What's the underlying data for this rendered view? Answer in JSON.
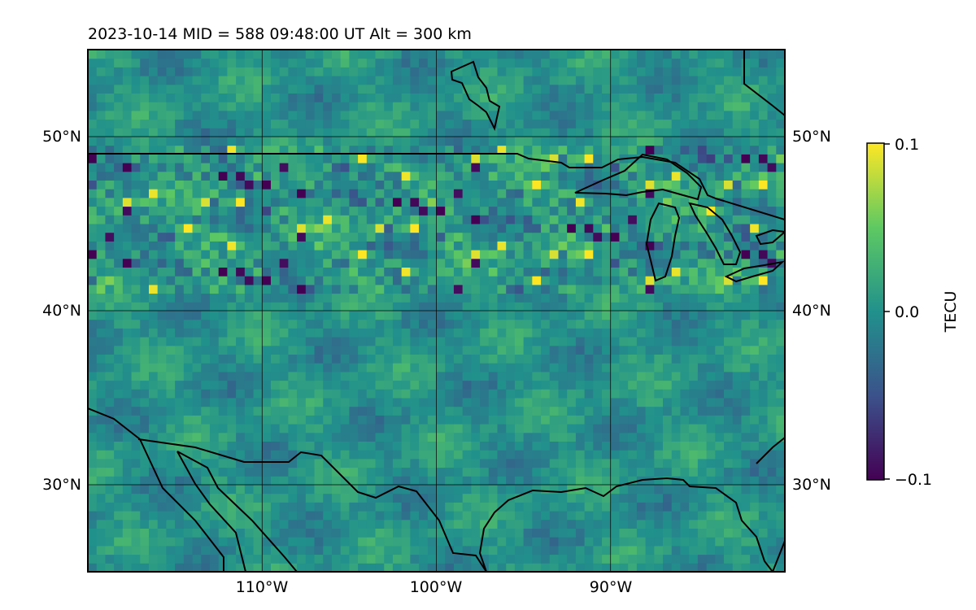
{
  "title": "2023-10-14  MID = 588    09:48:00  UT  Alt = 300 km",
  "chart_data": {
    "type": "heatmap",
    "projection": "lat-lon map",
    "xlim": [
      -120,
      -80
    ],
    "ylim": [
      25,
      55
    ],
    "lon_ticks": [
      -110,
      -100,
      -90
    ],
    "lon_tick_labels": [
      "110°W",
      "100°W",
      "90°W"
    ],
    "lat_ticks": [
      30,
      40,
      50
    ],
    "lat_tick_labels": [
      "30°N",
      "40°N",
      "50°N"
    ],
    "grid": true,
    "value_range": [
      -0.1,
      0.1
    ],
    "colormap": "viridis",
    "colorbar": {
      "label": "TECU",
      "ticks": [
        0.1,
        0.0,
        -0.1
      ],
      "tick_labels": [
        "0.1",
        "0.0",
        "−0.1"
      ]
    },
    "anomaly_band": {
      "lat": [
        41,
        49
      ],
      "description": "strong positive/negative perturbations across northern US"
    }
  }
}
